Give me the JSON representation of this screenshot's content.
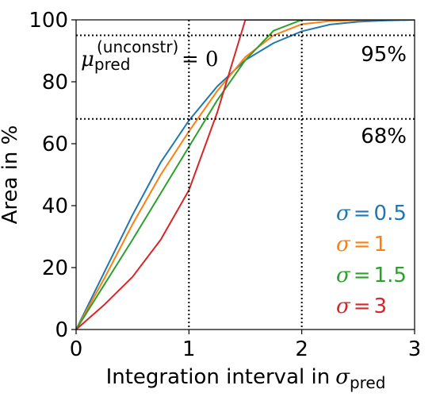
{
  "chart_data": {
    "type": "line",
    "title": "",
    "xlabel": "Integration interval in",
    "xlabel_symbol": "σ",
    "xlabel_subscript": "pred",
    "ylabel": "Area in %",
    "xlim": [
      0,
      3
    ],
    "ylim": [
      0,
      100
    ],
    "x_ticks": [
      "0",
      "1",
      "2",
      "3"
    ],
    "y_ticks": [
      "0",
      "20",
      "40",
      "60",
      "80",
      "100"
    ],
    "grid": false,
    "x": [
      0,
      0.25,
      0.5,
      0.75,
      1,
      1.25,
      1.5,
      1.75,
      2,
      2.25,
      2.5,
      2.75,
      3
    ],
    "series": [
      {
        "name": "σ = 0.5",
        "legend_symbol": "σ",
        "legend_value": "0.5",
        "color": "#1f77b4",
        "values": [
          0,
          18.5,
          37,
          54,
          67.5,
          78.5,
          87,
          92.5,
          96.3,
          98.5,
          99.4,
          99.8,
          100
        ]
      },
      {
        "name": "σ = 1",
        "legend_symbol": "σ",
        "legend_value": "1",
        "color": "#ff7f0e",
        "values": [
          0,
          16.5,
          34,
          50,
          64,
          77,
          88,
          95,
          98.6,
          99.6,
          99.9,
          100,
          100
        ]
      },
      {
        "name": "σ = 1.5",
        "legend_symbol": "σ",
        "legend_value": "1.5",
        "color": "#2ca02c",
        "values": [
          0,
          14.5,
          29,
          44,
          59,
          74,
          87,
          96.5,
          100,
          100,
          100,
          100,
          100
        ]
      },
      {
        "name": "σ = 3",
        "legend_symbol": "σ",
        "legend_value": "3",
        "color": "#d62728",
        "values": [
          0,
          8,
          17,
          29,
          45,
          70,
          100,
          100,
          100,
          100,
          100,
          100,
          100
        ]
      }
    ],
    "reference_lines": {
      "horizontal": [
        95,
        68
      ],
      "vertical": [
        1,
        2
      ],
      "style": "dotted",
      "color": "#000000"
    },
    "annotations": [
      {
        "text": "95%"
      },
      {
        "text": "68%"
      }
    ],
    "equation": {
      "symbol": "μ",
      "superscript": "(unconstr)",
      "subscript": "pred",
      "rhs": "= 0"
    },
    "legend_position": "bottom-right"
  }
}
